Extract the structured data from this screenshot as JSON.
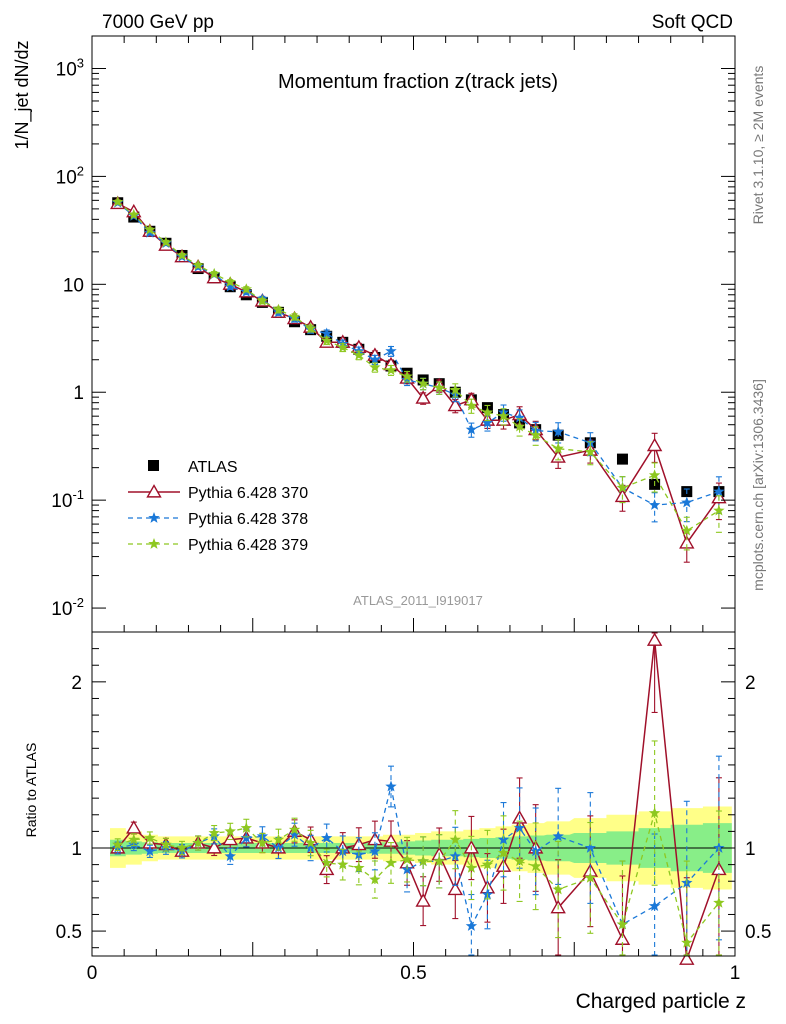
{
  "header": {
    "left": "7000 GeV pp",
    "right": "Soft QCD"
  },
  "side_labels": {
    "rivet": "Rivet 3.1.10, ≥ 2M events",
    "mcplots": "mcplots.cern.ch [arXiv:1306.3436]"
  },
  "colors": {
    "atlas": "#000000",
    "p370": "#a0102a",
    "p378": "#1a78d8",
    "p379": "#8ec820",
    "band_outer": "#ffff88",
    "band_inner": "#88ee88"
  },
  "chart_data": [
    {
      "type": "scatter",
      "title": "Momentum fraction z(track jets)",
      "xlabel": "Charged particle z",
      "ylabel": "1/N_jet dN/dz",
      "yscale": "log",
      "ylim": [
        0.006,
        2000
      ],
      "xlim": [
        0,
        1
      ],
      "analysis_label": "ATLAS_2011_I919017",
      "y_tick_labels": [
        "10^-2",
        "10^-1",
        "1",
        "10",
        "10^2",
        "10^3"
      ],
      "legend": {
        "placement": "bottom-left",
        "entries": [
          "ATLAS",
          "Pythia 6.428 370",
          "Pythia 6.428 378",
          "Pythia 6.428 379"
        ]
      },
      "x": [
        0.04,
        0.065,
        0.09,
        0.115,
        0.14,
        0.165,
        0.19,
        0.215,
        0.24,
        0.265,
        0.29,
        0.315,
        0.34,
        0.365,
        0.39,
        0.415,
        0.44,
        0.465,
        0.49,
        0.515,
        0.54,
        0.565,
        0.59,
        0.615,
        0.64,
        0.665,
        0.69,
        0.725,
        0.775,
        0.825,
        0.875,
        0.925,
        0.975
      ],
      "series": [
        {
          "name": "ATLAS",
          "values": [
            57,
            42,
            31,
            24,
            18.5,
            14,
            11.5,
            9.5,
            8,
            6.8,
            5.5,
            4.5,
            3.8,
            3.3,
            2.9,
            2.5,
            2.1,
            1.75,
            1.5,
            1.3,
            1.2,
            1.0,
            0.85,
            0.72,
            0.62,
            0.52,
            0.45,
            0.4,
            0.34,
            0.24,
            0.14,
            0.12,
            0.12
          ]
        },
        {
          "name": "Pythia 6.428 370",
          "values": [
            56,
            47,
            31,
            23,
            18,
            14.5,
            11.5,
            10,
            8.5,
            7,
            5.5,
            4.8,
            4.0,
            2.9,
            2.9,
            2.6,
            2.2,
            1.8,
            1.35,
            0.88,
            1.15,
            0.75,
            0.85,
            0.55,
            0.55,
            0.62,
            0.45,
            0.25,
            0.29,
            0.108,
            0.32,
            0.04,
            0.105
          ]
        },
        {
          "name": "Pythia 6.428 378",
          "values": [
            57,
            43,
            30,
            24,
            18,
            14.5,
            12.4,
            9.5,
            8.5,
            7.3,
            5.5,
            4.8,
            3.8,
            3.5,
            2.8,
            2.4,
            2.0,
            2.4,
            1.3,
            1.2,
            1.1,
            0.95,
            0.45,
            0.52,
            0.65,
            0.58,
            0.44,
            0.43,
            0.34,
            0.13,
            0.09,
            0.095,
            0.12
          ]
        },
        {
          "name": "Pythia 6.428 379",
          "values": [
            58,
            44,
            32,
            24.5,
            18.5,
            15,
            12.5,
            10.5,
            9,
            7,
            5.8,
            5,
            3.9,
            3.0,
            2.6,
            2.2,
            1.7,
            1.6,
            1.4,
            1.2,
            1.1,
            1.05,
            0.75,
            0.65,
            0.6,
            0.48,
            0.4,
            0.3,
            0.28,
            0.13,
            0.17,
            0.052,
            0.08
          ]
        }
      ]
    },
    {
      "type": "scatter",
      "xlabel": "Charged particle z",
      "ylabel": "Ratio to ATLAS",
      "ylim": [
        0.35,
        2.3
      ],
      "xlim": [
        0,
        1
      ],
      "x_tick_labels": [
        "0",
        "0.5",
        "1"
      ],
      "y_tick_labels": [
        "0.5",
        "1",
        "2"
      ],
      "x": [
        0.04,
        0.065,
        0.09,
        0.115,
        0.14,
        0.165,
        0.19,
        0.215,
        0.24,
        0.265,
        0.29,
        0.315,
        0.34,
        0.365,
        0.39,
        0.415,
        0.44,
        0.465,
        0.49,
        0.515,
        0.54,
        0.565,
        0.59,
        0.615,
        0.64,
        0.665,
        0.69,
        0.725,
        0.775,
        0.825,
        0.875,
        0.925,
        0.975
      ],
      "series": [
        {
          "name": "Pythia 6.428 370",
          "values": [
            1.0,
            1.12,
            1.03,
            1.02,
            0.98,
            1.03,
            1.0,
            1.05,
            1.06,
            1.03,
            1.0,
            1.1,
            1.05,
            0.87,
            1.0,
            1.02,
            1.05,
            1.04,
            0.91,
            0.68,
            0.96,
            0.75,
            1.0,
            0.76,
            0.89,
            1.18,
            1.0,
            0.64,
            0.86,
            0.45,
            2.25,
            0.33,
            0.87
          ]
        },
        {
          "name": "Pythia 6.428 378",
          "values": [
            1.0,
            1.02,
            0.98,
            1.0,
            0.98,
            1.03,
            1.07,
            0.95,
            1.06,
            1.07,
            1.0,
            1.08,
            1.0,
            1.06,
            0.98,
            0.96,
            0.98,
            1.37,
            0.87,
            0.92,
            0.92,
            0.95,
            0.53,
            0.72,
            1.05,
            1.12,
            0.98,
            1.07,
            1.0,
            0.54,
            0.65,
            0.79,
            1.0
          ]
        },
        {
          "name": "Pythia 6.428 379",
          "values": [
            1.02,
            1.05,
            1.06,
            1.02,
            1.0,
            1.03,
            1.09,
            1.1,
            1.12,
            1.03,
            1.05,
            1.11,
            1.03,
            0.91,
            0.9,
            0.88,
            0.81,
            0.91,
            0.93,
            0.92,
            0.92,
            1.05,
            0.88,
            0.9,
            0.97,
            0.92,
            0.89,
            0.75,
            0.82,
            0.54,
            1.21,
            0.43,
            0.67
          ]
        }
      ],
      "band_outer": [
        0.12,
        0.1,
        0.08,
        0.07,
        0.07,
        0.07,
        0.07,
        0.07,
        0.07,
        0.07,
        0.07,
        0.07,
        0.07,
        0.07,
        0.07,
        0.07,
        0.07,
        0.08,
        0.08,
        0.09,
        0.1,
        0.1,
        0.11,
        0.12,
        0.13,
        0.14,
        0.15,
        0.16,
        0.18,
        0.2,
        0.22,
        0.24,
        0.25
      ],
      "band_inner": [
        0.05,
        0.04,
        0.035,
        0.03,
        0.03,
        0.03,
        0.03,
        0.03,
        0.03,
        0.03,
        0.03,
        0.03,
        0.03,
        0.03,
        0.03,
        0.03,
        0.035,
        0.035,
        0.04,
        0.045,
        0.05,
        0.05,
        0.055,
        0.06,
        0.065,
        0.07,
        0.075,
        0.08,
        0.09,
        0.1,
        0.12,
        0.14,
        0.15
      ]
    }
  ]
}
